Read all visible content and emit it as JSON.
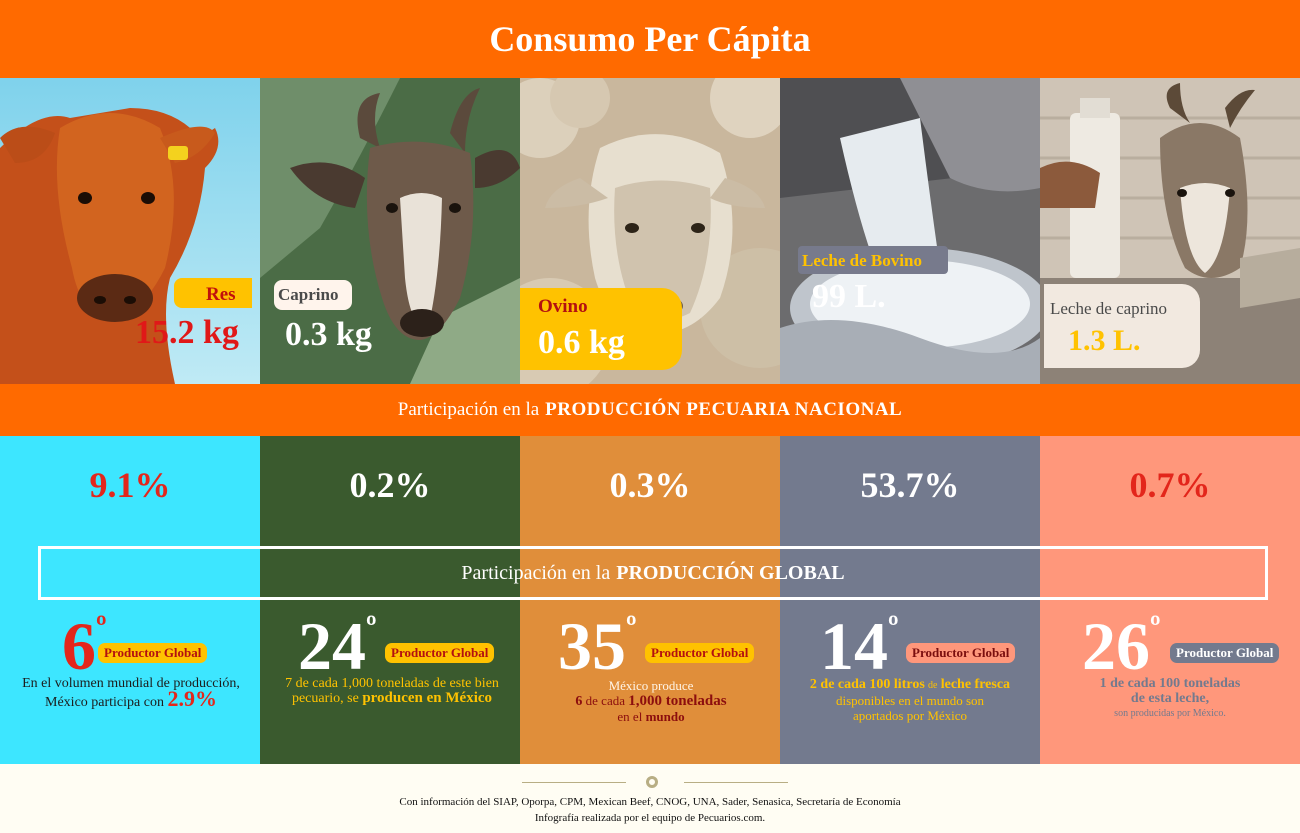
{
  "title": "Consumo Per Cápita",
  "consumption": [
    {
      "label": "Res",
      "value": "15.2 kg",
      "icon": "cow-photo"
    },
    {
      "label": "Caprino",
      "value": "0.3 kg",
      "icon": "goat-photo"
    },
    {
      "label": "Ovino",
      "value": "0.6 kg",
      "icon": "sheep-photo"
    },
    {
      "label": "Leche de Bovino",
      "value": "99 L.",
      "icon": "milk-pour-photo"
    },
    {
      "label": "Leche de caprino",
      "value": "1.3 L.",
      "icon": "goat-milk-photo"
    }
  ],
  "national_band": {
    "prefix": "Participación en la",
    "emphasis": "PRODUCCIÓN PECUARIA NACIONAL"
  },
  "national": [
    "9.1%",
    "0.2%",
    "0.3%",
    "53.7%",
    "0.7%"
  ],
  "global_band": {
    "prefix": "Participación en la",
    "emphasis": "PRODUCCIÓN GLOBAL"
  },
  "global": [
    {
      "rank": "6",
      "deg": "º",
      "badge": "Productor Global",
      "desc1": "En el volumen mundial de producción,",
      "desc2": "México participa con",
      "desc3": "2.9%"
    },
    {
      "rank": "24",
      "deg": "º",
      "badge": "Productor Global",
      "desc1": "7 de cada 1,000 toneladas de este bien",
      "desc2": "pecuario, se",
      "desc3": "producen en México"
    },
    {
      "rank": "35",
      "deg": "º",
      "badge": "Productor Global",
      "desc1": "México produce",
      "desc2a": "6",
      "desc2b": "de cada",
      "desc2c": "1,000 toneladas",
      "desc3a": "en el",
      "desc3b": "mundo"
    },
    {
      "rank": "14",
      "deg": "º",
      "badge": "Productor Global",
      "desc1a": "2 de cada 100 litros",
      "desc1b": "de",
      "desc1c": "leche fresca",
      "desc2": "disponibles en el mundo son",
      "desc3": "aportados por México"
    },
    {
      "rank": "26",
      "deg": "º",
      "badge": "Productor Global",
      "desc1": "1 de cada 100 toneladas",
      "desc2": "de esta leche,",
      "desc3": "son producidas por México."
    }
  ],
  "footer": {
    "sources": "Con información del SIAP, Oporpa, CPM, Mexican Beef, CNOG, UNA, Sader, Senasica, Secretaría de Economía",
    "credit": "Infografía realizada por el equipo de Pecuarios.com."
  },
  "colors": {
    "orange": "#ff6a00",
    "cyan": "#3de6ff",
    "green": "#3a5a2e",
    "amber": "#e08e3a",
    "slate": "#737a8e",
    "salmon": "#ff977b",
    "red": "#e3261b",
    "yellow": "#ffc200"
  }
}
